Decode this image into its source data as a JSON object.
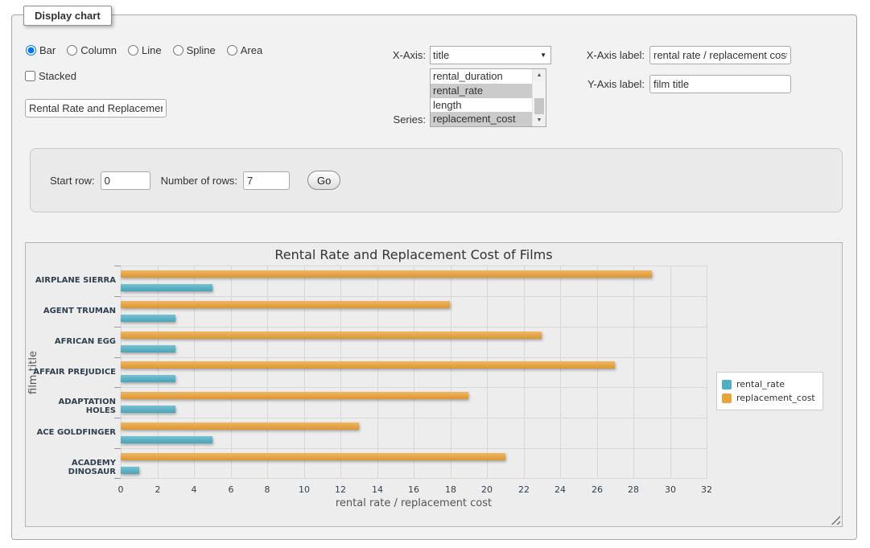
{
  "window": {
    "legend": "Display chart"
  },
  "chart_type": {
    "options": [
      {
        "label": "Bar",
        "selected": true
      },
      {
        "label": "Column",
        "selected": false
      },
      {
        "label": "Line",
        "selected": false
      },
      {
        "label": "Spline",
        "selected": false
      },
      {
        "label": "Area",
        "selected": false
      }
    ]
  },
  "stacked": {
    "label": "Stacked",
    "checked": false
  },
  "chart_title_input": {
    "value": "Rental Rate and Replacement Cost of Films"
  },
  "x_axis_select": {
    "label": "X-Axis:",
    "value": "title"
  },
  "series_select": {
    "label": "Series:",
    "options": [
      {
        "label": "rental_duration",
        "selected": false
      },
      {
        "label": "rental_rate",
        "selected": true
      },
      {
        "label": "length",
        "selected": false
      },
      {
        "label": "replacement_cost",
        "selected": true
      }
    ]
  },
  "x_axis_label_input": {
    "label": "X-Axis label:",
    "value": "rental rate / replacement cost"
  },
  "y_axis_label_input": {
    "label": "Y-Axis label:",
    "value": "film title"
  },
  "row_controls": {
    "start_row_label": "Start row:",
    "start_row_value": "0",
    "num_rows_label": "Number of rows:",
    "num_rows_value": "7",
    "go_label": "Go"
  },
  "chart_data": {
    "type": "bar",
    "title": "Rental Rate and Replacement Cost of Films",
    "categories": [
      "AIRPLANE SIERRA",
      "AGENT TRUMAN",
      "AFRICAN EGG",
      "AFFAIR PREJUDICE",
      "ADAPTATION HOLES",
      "ACE GOLDFINGER",
      "ACADEMY DINOSAUR"
    ],
    "series": [
      {
        "name": "rental_rate",
        "color": "#4fb0c4",
        "values": [
          4.99,
          2.99,
          2.99,
          2.99,
          2.99,
          4.99,
          0.99
        ]
      },
      {
        "name": "replacement_cost",
        "color": "#eba236",
        "values": [
          28.99,
          17.99,
          22.99,
          26.99,
          18.99,
          12.99,
          20.99
        ]
      }
    ],
    "series_draw_order_top_to_bottom": [
      "replacement_cost",
      "rental_rate"
    ],
    "xlabel": "rental rate / replacement cost",
    "ylabel": "film title",
    "xlim": [
      0,
      32
    ],
    "xticks": [
      0,
      2,
      4,
      6,
      8,
      10,
      12,
      14,
      16,
      18,
      20,
      22,
      24,
      26,
      28,
      30,
      32
    ],
    "grid": true,
    "legend_position": "right"
  }
}
